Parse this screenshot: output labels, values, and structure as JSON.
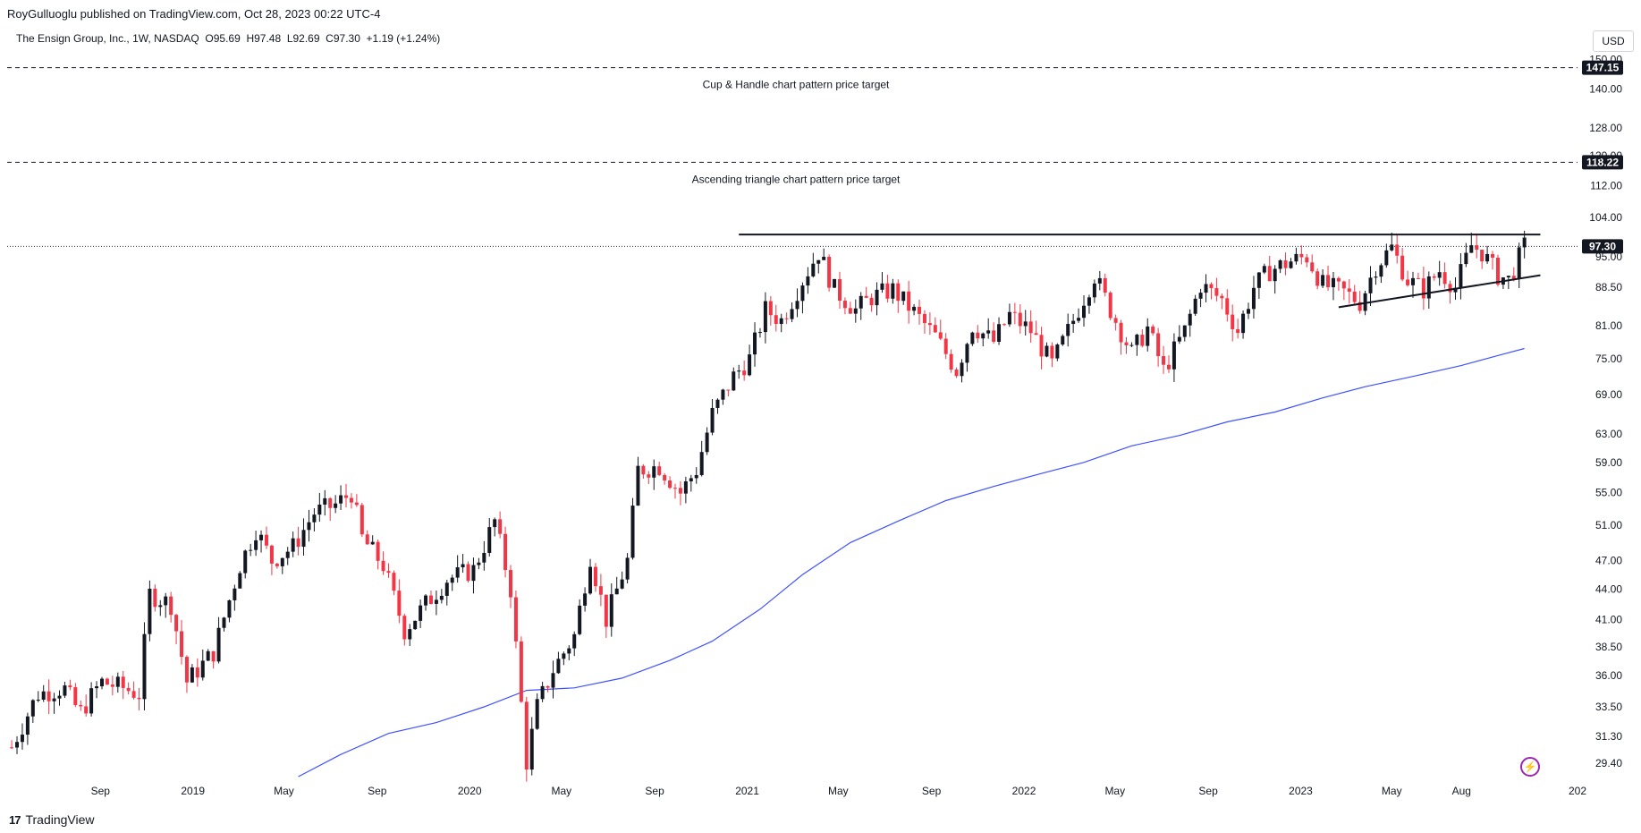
{
  "header": {
    "published_by": "RoyGulluoglu published on TradingView.com, Oct 28, 2023 00:22 UTC-4",
    "symbol_line": "The Ensign Group, Inc., 1W, NASDAQ  O95.69  H97.48  L92.69  C97.30  +1.19 (+1.24%)",
    "currency": "USD"
  },
  "footer": {
    "logo_text": "TradingView",
    "logo_mark": "17"
  },
  "colors": {
    "up": "#131722",
    "down": "#f23645",
    "ma": "#3f51ff",
    "axis_text": "#131722"
  },
  "chart_data": {
    "type": "candlestick",
    "interval": "1W",
    "yscale": "log",
    "ylim": [
      28.5,
      152.0
    ],
    "y_ticks": [
      "150.00",
      "140.00",
      "128.00",
      "120.00",
      "112.00",
      "104.00",
      "95.00",
      "88.50",
      "81.00",
      "75.00",
      "69.00",
      "63.00",
      "59.00",
      "55.00",
      "51.00",
      "47.00",
      "44.00",
      "41.00",
      "38.50",
      "36.00",
      "33.50",
      "31.30",
      "29.40"
    ],
    "x_ticks": [
      {
        "label": "Sep",
        "date": "2018-09-01"
      },
      {
        "label": "2019",
        "date": "2019-01-01"
      },
      {
        "label": "May",
        "date": "2019-05-01"
      },
      {
        "label": "Sep",
        "date": "2019-09-01"
      },
      {
        "label": "2020",
        "date": "2020-01-01"
      },
      {
        "label": "May",
        "date": "2020-05-01"
      },
      {
        "label": "Sep",
        "date": "2020-09-01"
      },
      {
        "label": "2021",
        "date": "2021-01-01"
      },
      {
        "label": "May",
        "date": "2021-05-01"
      },
      {
        "label": "Sep",
        "date": "2021-09-01"
      },
      {
        "label": "2022",
        "date": "2022-01-01"
      },
      {
        "label": "May",
        "date": "2022-05-01"
      },
      {
        "label": "Sep",
        "date": "2022-09-01"
      },
      {
        "label": "2023",
        "date": "2023-01-01"
      },
      {
        "label": "May",
        "date": "2023-05-01"
      },
      {
        "label": "Aug",
        "date": "2023-08-01"
      },
      {
        "label": "202",
        "date": "2024-01-01"
      }
    ],
    "xlim": [
      "2018-05-01",
      "2024-01-01"
    ],
    "price_keypoints": [
      {
        "date": "2018-05-07",
        "close": 30.5
      },
      {
        "date": "2018-06-10",
        "close": 34.5
      },
      {
        "date": "2018-07-15",
        "close": 35.0
      },
      {
        "date": "2018-08-05",
        "close": 33.0
      },
      {
        "date": "2018-09-02",
        "close": 35.5
      },
      {
        "date": "2018-10-01",
        "close": 35.0
      },
      {
        "date": "2018-10-22",
        "close": 34.5
      },
      {
        "date": "2018-11-05",
        "close": 43.5
      },
      {
        "date": "2018-12-03",
        "close": 42.5
      },
      {
        "date": "2018-12-24",
        "close": 35.5
      },
      {
        "date": "2019-01-28",
        "close": 38.0
      },
      {
        "date": "2019-03-04",
        "close": 46.5
      },
      {
        "date": "2019-03-25",
        "close": 50.5
      },
      {
        "date": "2019-04-15",
        "close": 47.0
      },
      {
        "date": "2019-05-13",
        "close": 48.5
      },
      {
        "date": "2019-06-10",
        "close": 52.5
      },
      {
        "date": "2019-07-08",
        "close": 53.5
      },
      {
        "date": "2019-07-29",
        "close": 55.0
      },
      {
        "date": "2019-08-12",
        "close": 49.5
      },
      {
        "date": "2019-09-09",
        "close": 46.5
      },
      {
        "date": "2019-10-07",
        "close": 40.0
      },
      {
        "date": "2019-11-04",
        "close": 42.5
      },
      {
        "date": "2019-12-02",
        "close": 45.0
      },
      {
        "date": "2020-01-06",
        "close": 46.0
      },
      {
        "date": "2020-02-03",
        "close": 51.5
      },
      {
        "date": "2020-02-24",
        "close": 44.0
      },
      {
        "date": "2020-03-16",
        "close": 29.5
      },
      {
        "date": "2020-03-30",
        "close": 33.5
      },
      {
        "date": "2020-04-20",
        "close": 36.5
      },
      {
        "date": "2020-05-18",
        "close": 39.5
      },
      {
        "date": "2020-06-08",
        "close": 47.5
      },
      {
        "date": "2020-06-29",
        "close": 41.0
      },
      {
        "date": "2020-07-27",
        "close": 47.0
      },
      {
        "date": "2020-08-10",
        "close": 58.0
      },
      {
        "date": "2020-09-07",
        "close": 58.5
      },
      {
        "date": "2020-10-05",
        "close": 55.0
      },
      {
        "date": "2020-10-26",
        "close": 58.0
      },
      {
        "date": "2020-11-16",
        "close": 66.0
      },
      {
        "date": "2020-12-14",
        "close": 72.0
      },
      {
        "date": "2021-01-04",
        "close": 75.0
      },
      {
        "date": "2021-01-25",
        "close": 84.0
      },
      {
        "date": "2021-02-15",
        "close": 82.0
      },
      {
        "date": "2021-03-15",
        "close": 90.0
      },
      {
        "date": "2021-04-05",
        "close": 96.0
      },
      {
        "date": "2021-04-26",
        "close": 88.0
      },
      {
        "date": "2021-05-24",
        "close": 84.0
      },
      {
        "date": "2021-06-14",
        "close": 86.5
      },
      {
        "date": "2021-07-12",
        "close": 88.0
      },
      {
        "date": "2021-08-09",
        "close": 83.5
      },
      {
        "date": "2021-09-06",
        "close": 79.0
      },
      {
        "date": "2021-10-04",
        "close": 73.0
      },
      {
        "date": "2021-10-25",
        "close": 81.0
      },
      {
        "date": "2021-11-22",
        "close": 78.0
      },
      {
        "date": "2021-12-13",
        "close": 83.0
      },
      {
        "date": "2022-01-10",
        "close": 80.0
      },
      {
        "date": "2022-02-07",
        "close": 74.0
      },
      {
        "date": "2022-03-07",
        "close": 82.0
      },
      {
        "date": "2022-04-04",
        "close": 91.0
      },
      {
        "date": "2022-04-25",
        "close": 84.0
      },
      {
        "date": "2022-05-23",
        "close": 76.0
      },
      {
        "date": "2022-06-13",
        "close": 80.5
      },
      {
        "date": "2022-07-04",
        "close": 73.0
      },
      {
        "date": "2022-08-01",
        "close": 80.0
      },
      {
        "date": "2022-08-22",
        "close": 89.0
      },
      {
        "date": "2022-09-19",
        "close": 86.0
      },
      {
        "date": "2022-10-10",
        "close": 80.0
      },
      {
        "date": "2022-10-31",
        "close": 88.5
      },
      {
        "date": "2022-11-21",
        "close": 92.0
      },
      {
        "date": "2022-12-19",
        "close": 94.0
      },
      {
        "date": "2023-01-09",
        "close": 95.0
      },
      {
        "date": "2023-01-30",
        "close": 89.0
      },
      {
        "date": "2023-02-27",
        "close": 87.5
      },
      {
        "date": "2023-03-20",
        "close": 85.5
      },
      {
        "date": "2023-04-10",
        "close": 93.0
      },
      {
        "date": "2023-05-01",
        "close": 97.0
      },
      {
        "date": "2023-05-22",
        "close": 90.0
      },
      {
        "date": "2023-06-12",
        "close": 88.0
      },
      {
        "date": "2023-07-03",
        "close": 92.0
      },
      {
        "date": "2023-07-24",
        "close": 88.5
      },
      {
        "date": "2023-08-14",
        "close": 97.5
      },
      {
        "date": "2023-08-28",
        "close": 96.0
      },
      {
        "date": "2023-09-18",
        "close": 91.0
      },
      {
        "date": "2023-10-02",
        "close": 90.0
      },
      {
        "date": "2023-10-23",
        "close": 97.3
      }
    ],
    "moving_average": [
      {
        "date": "2019-05-20",
        "value": 28.5
      },
      {
        "date": "2019-07-15",
        "value": 30.0
      },
      {
        "date": "2019-09-16",
        "value": 31.5
      },
      {
        "date": "2019-11-18",
        "value": 32.3
      },
      {
        "date": "2020-01-20",
        "value": 33.5
      },
      {
        "date": "2020-03-16",
        "value": 34.8
      },
      {
        "date": "2020-05-18",
        "value": 35.0
      },
      {
        "date": "2020-07-20",
        "value": 35.8
      },
      {
        "date": "2020-09-21",
        "value": 37.3
      },
      {
        "date": "2020-11-16",
        "value": 39.0
      },
      {
        "date": "2021-01-18",
        "value": 42.0
      },
      {
        "date": "2021-03-15",
        "value": 45.5
      },
      {
        "date": "2021-05-17",
        "value": 49.0
      },
      {
        "date": "2021-07-19",
        "value": 51.5
      },
      {
        "date": "2021-09-20",
        "value": 54.0
      },
      {
        "date": "2021-11-22",
        "value": 55.8
      },
      {
        "date": "2022-01-24",
        "value": 57.5
      },
      {
        "date": "2022-03-21",
        "value": 59.0
      },
      {
        "date": "2022-05-23",
        "value": 61.3
      },
      {
        "date": "2022-07-25",
        "value": 62.8
      },
      {
        "date": "2022-09-26",
        "value": 64.8
      },
      {
        "date": "2022-11-28",
        "value": 66.3
      },
      {
        "date": "2023-01-30",
        "value": 68.5
      },
      {
        "date": "2023-03-27",
        "value": 70.3
      },
      {
        "date": "2023-05-29",
        "value": 72.0
      },
      {
        "date": "2023-07-31",
        "value": 73.8
      },
      {
        "date": "2023-09-25",
        "value": 75.8
      },
      {
        "date": "2023-10-23",
        "value": 76.8
      }
    ],
    "horizontal_levels": [
      {
        "name": "Cup & Handle target",
        "value": 147.15,
        "label": "147.15",
        "annotation": "Cup & Handle chart pattern price target"
      },
      {
        "name": "Ascending triangle target",
        "value": 118.22,
        "label": "118.22",
        "annotation": "Ascending triangle chart pattern price target"
      }
    ],
    "last_price": {
      "value": 97.3,
      "label": "97.30"
    },
    "trendlines": [
      {
        "name": "resistance",
        "from": {
          "date": "2020-12-21",
          "price": 100.0
        },
        "to": {
          "date": "2023-11-13",
          "price": 100.0
        }
      },
      {
        "name": "support",
        "from": {
          "date": "2023-02-20",
          "price": 84.5
        },
        "to": {
          "date": "2023-11-13",
          "price": 91.0
        }
      }
    ]
  }
}
